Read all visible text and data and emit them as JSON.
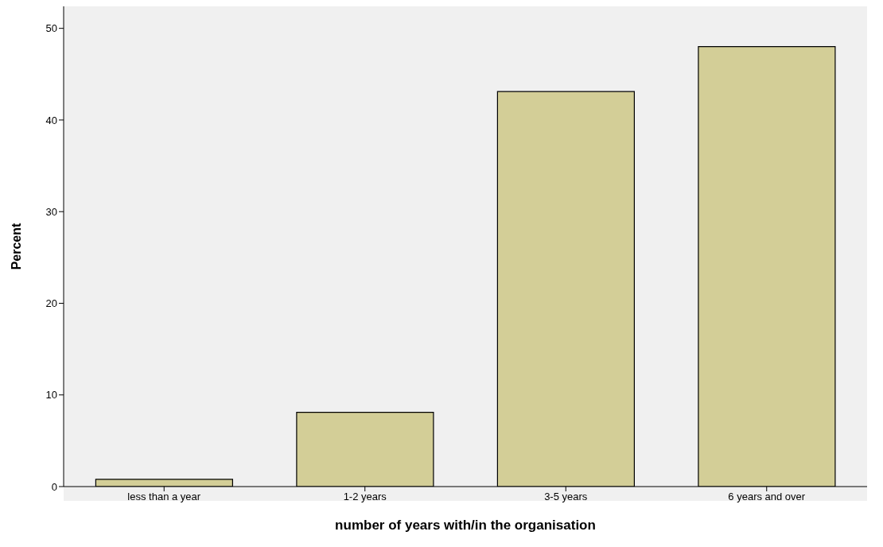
{
  "chart_data": {
    "type": "bar",
    "xlabel": "number of years with/in the organisation",
    "ylabel": "Percent",
    "categories": [
      "less than a year",
      "1-2 years",
      "3-5 years",
      "6 years and over"
    ],
    "values": [
      0.8,
      8.1,
      43.1,
      48.0
    ],
    "color": "#d3ce97",
    "ylim": [
      0,
      52.4
    ],
    "yticks": [
      0,
      10,
      20,
      30,
      40,
      50
    ],
    "grid": false
  }
}
